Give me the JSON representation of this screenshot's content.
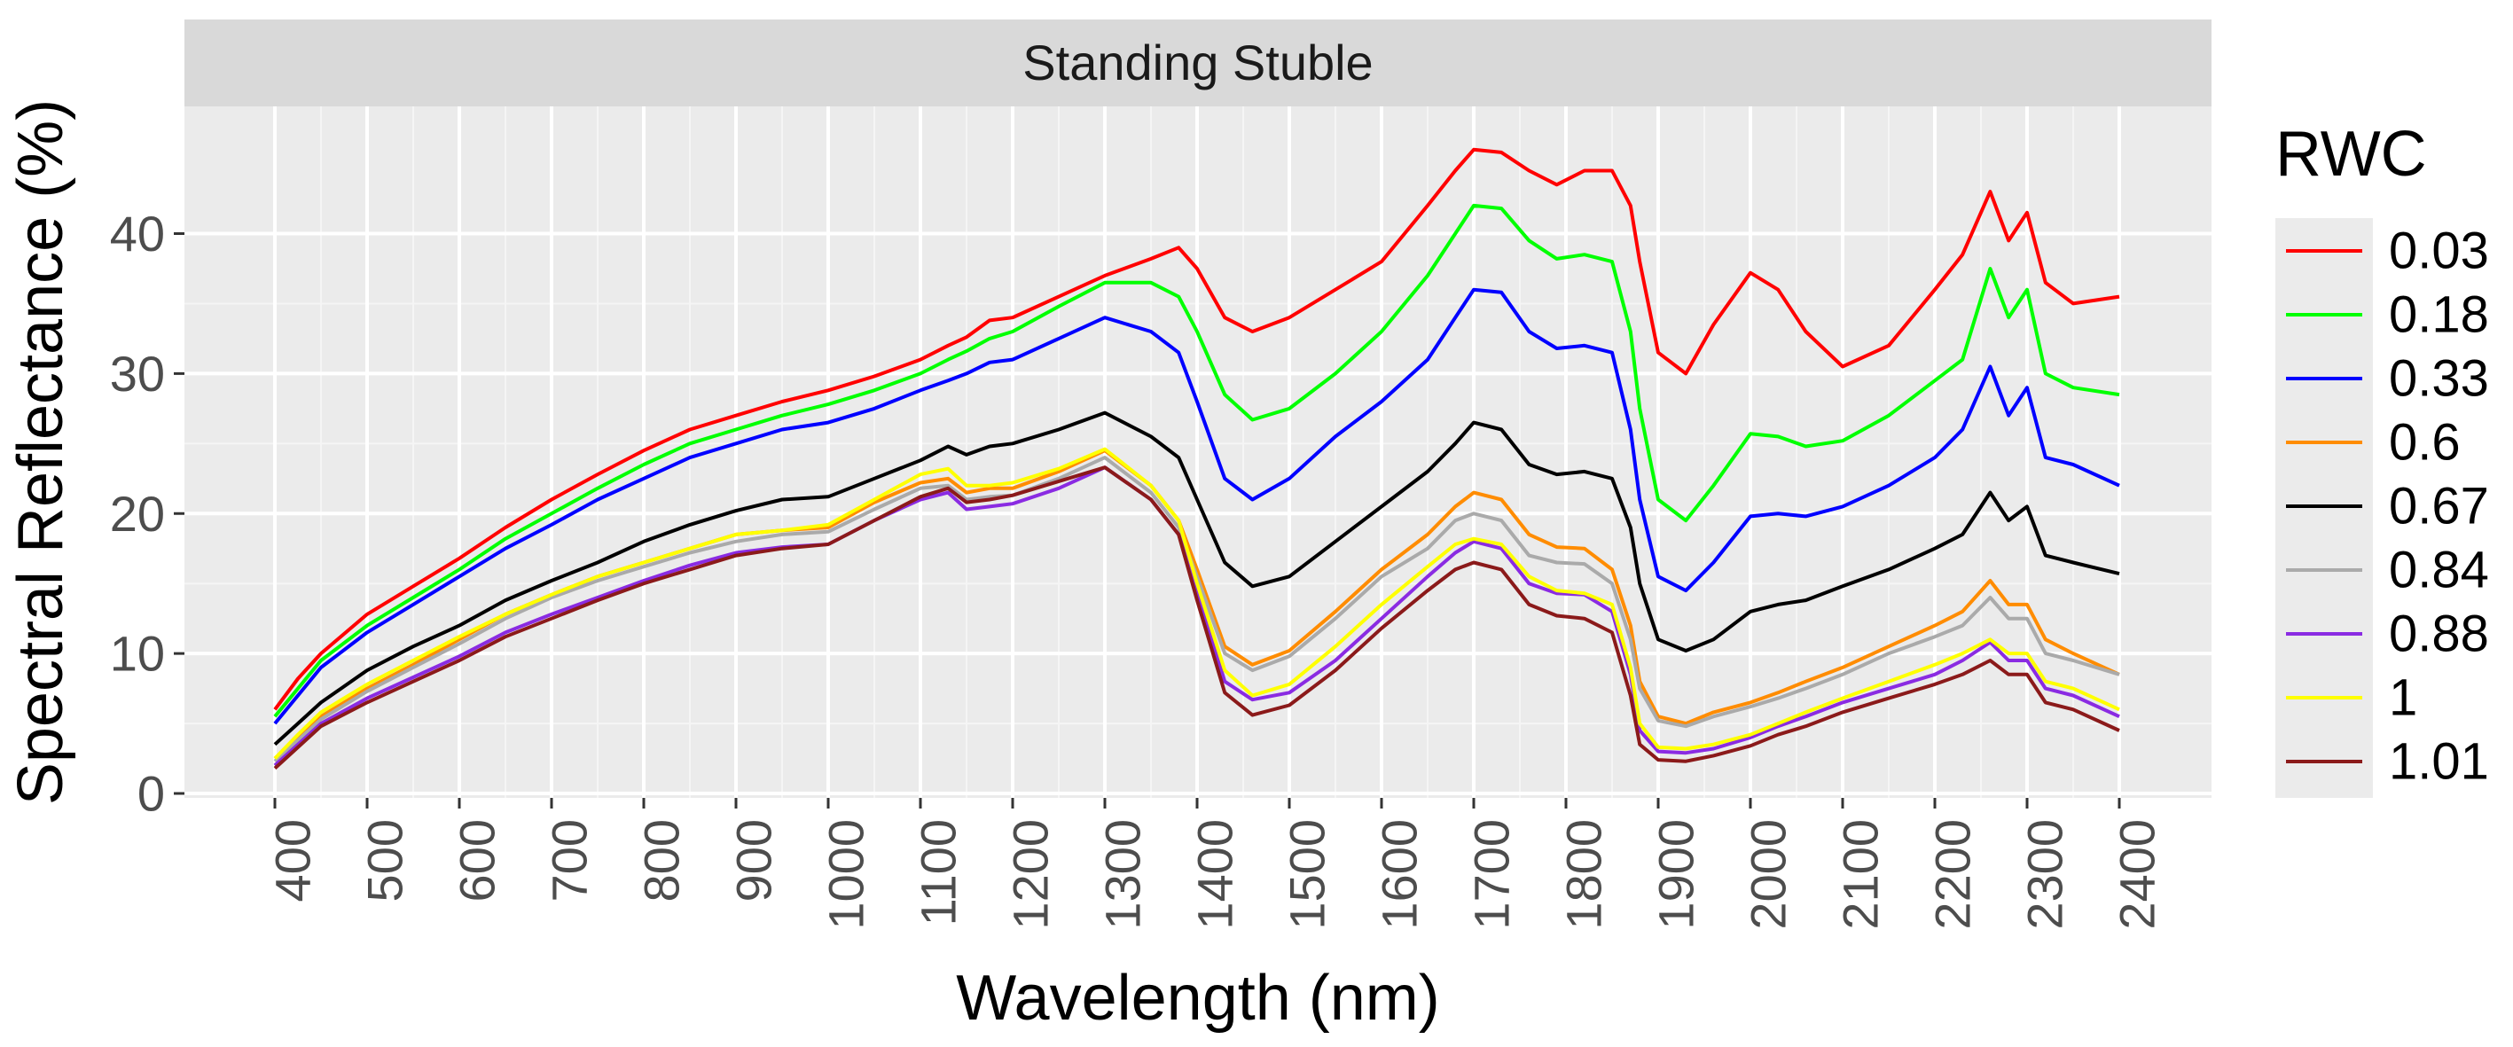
{
  "chart_data": {
    "type": "line",
    "title": "",
    "facet_label": "Standing Stuble",
    "xlabel": "Wavelength (nm)",
    "ylabel": "Spectral Reflectance (%)",
    "xlim": [
      400,
      2400
    ],
    "ylim": [
      0,
      47
    ],
    "x_ticks": [
      "400",
      "500",
      "600",
      "700",
      "800",
      "900",
      "1000",
      "1100",
      "1200",
      "1300",
      "1400",
      "1500",
      "1600",
      "1700",
      "1800",
      "1900",
      "2000",
      "2100",
      "2200",
      "2300",
      "2400"
    ],
    "y_ticks": [
      "0",
      "10",
      "20",
      "30",
      "40"
    ],
    "grid": true,
    "legend": {
      "title": "RWC",
      "position": "right"
    },
    "x": [
      400,
      425,
      450,
      500,
      550,
      600,
      650,
      700,
      750,
      800,
      850,
      900,
      950,
      1000,
      1050,
      1100,
      1130,
      1150,
      1175,
      1200,
      1250,
      1300,
      1350,
      1380,
      1400,
      1430,
      1460,
      1500,
      1550,
      1600,
      1650,
      1680,
      1700,
      1730,
      1760,
      1790,
      1820,
      1850,
      1870,
      1880,
      1900,
      1930,
      1960,
      2000,
      2030,
      2060,
      2100,
      2150,
      2200,
      2230,
      2260,
      2280,
      2300,
      2320,
      2350,
      2400
    ],
    "series": [
      {
        "name": "0.03",
        "color": "#ff0000",
        "values": [
          6.0,
          8.2,
          10.0,
          12.8,
          14.8,
          16.8,
          19.0,
          21.0,
          22.8,
          24.5,
          26.0,
          27.0,
          28.0,
          28.8,
          29.8,
          31.0,
          32.0,
          32.6,
          33.8,
          34.0,
          35.5,
          37.0,
          38.2,
          39.0,
          37.5,
          34.0,
          33.0,
          34.0,
          36.0,
          38.0,
          42.0,
          44.5,
          46.0,
          45.8,
          44.5,
          43.5,
          44.5,
          44.5,
          42.0,
          38.0,
          31.5,
          30.0,
          33.5,
          37.2,
          36.0,
          33.0,
          30.5,
          32.0,
          36.0,
          38.5,
          43.0,
          39.5,
          41.5,
          36.5,
          35.0,
          35.5
        ]
      },
      {
        "name": "0.18",
        "color": "#00ff00",
        "values": [
          5.5,
          7.5,
          9.5,
          12.0,
          14.0,
          16.0,
          18.2,
          20.0,
          21.8,
          23.5,
          25.0,
          26.0,
          27.0,
          27.8,
          28.8,
          30.0,
          31.0,
          31.6,
          32.5,
          33.0,
          34.8,
          36.5,
          36.5,
          35.5,
          33.0,
          28.5,
          26.7,
          27.5,
          30.0,
          33.0,
          37.0,
          40.0,
          42.0,
          41.8,
          39.5,
          38.2,
          38.5,
          38.0,
          33.0,
          27.5,
          21.0,
          19.5,
          22.0,
          25.7,
          25.5,
          24.8,
          25.2,
          27.0,
          29.5,
          31.0,
          37.5,
          34.0,
          36.0,
          30.0,
          29.0,
          28.5
        ]
      },
      {
        "name": "0.33",
        "color": "#0000ff",
        "values": [
          5.0,
          7.0,
          9.0,
          11.5,
          13.5,
          15.5,
          17.5,
          19.2,
          21.0,
          22.5,
          24.0,
          25.0,
          26.0,
          26.5,
          27.5,
          28.8,
          29.5,
          30.0,
          30.8,
          31.0,
          32.5,
          34.0,
          33.0,
          31.5,
          28.0,
          22.5,
          21.0,
          22.5,
          25.5,
          28.0,
          31.0,
          34.0,
          36.0,
          35.8,
          33.0,
          31.8,
          32.0,
          31.5,
          26.0,
          21.0,
          15.5,
          14.5,
          16.5,
          19.8,
          20.0,
          19.8,
          20.5,
          22.0,
          24.0,
          26.0,
          30.5,
          27.0,
          29.0,
          24.0,
          23.5,
          22.0
        ]
      },
      {
        "name": "0.6",
        "color": "#ff8c00",
        "values": [
          2.5,
          4.0,
          5.5,
          7.5,
          9.2,
          11.0,
          12.8,
          14.2,
          15.5,
          16.5,
          17.5,
          18.5,
          18.8,
          19.0,
          20.8,
          22.2,
          22.5,
          21.5,
          21.8,
          21.8,
          23.0,
          24.5,
          22.0,
          19.5,
          16.0,
          10.5,
          9.2,
          10.2,
          13.0,
          16.0,
          18.5,
          20.5,
          21.5,
          21.0,
          18.5,
          17.6,
          17.5,
          16.0,
          12.0,
          8.0,
          5.5,
          5.0,
          5.8,
          6.5,
          7.2,
          8.0,
          9.0,
          10.5,
          12.0,
          13.0,
          15.2,
          13.5,
          13.5,
          11.0,
          10.0,
          8.5
        ]
      },
      {
        "name": "0.67",
        "color": "#000000",
        "values": [
          3.5,
          5.0,
          6.5,
          8.8,
          10.5,
          12.0,
          13.8,
          15.2,
          16.5,
          18.0,
          19.2,
          20.2,
          21.0,
          21.2,
          22.5,
          23.8,
          24.8,
          24.2,
          24.8,
          25.0,
          26.0,
          27.2,
          25.5,
          24.0,
          21.0,
          16.5,
          14.8,
          15.5,
          18.0,
          20.5,
          23.0,
          25.0,
          26.5,
          26.0,
          23.5,
          22.8,
          23.0,
          22.5,
          19.0,
          15.0,
          11.0,
          10.2,
          11.0,
          13.0,
          13.5,
          13.8,
          14.8,
          16.0,
          17.5,
          18.5,
          21.5,
          19.5,
          20.5,
          17.0,
          16.5,
          15.7
        ]
      },
      {
        "name": "0.84",
        "color": "#aaaaaa",
        "values": [
          2.3,
          3.8,
          5.3,
          7.3,
          9.0,
          10.7,
          12.5,
          14.0,
          15.2,
          16.2,
          17.2,
          18.0,
          18.5,
          18.7,
          20.3,
          21.8,
          22.0,
          21.0,
          21.2,
          21.3,
          22.5,
          24.0,
          21.5,
          19.0,
          15.5,
          10.0,
          8.8,
          9.8,
          12.5,
          15.5,
          17.5,
          19.5,
          20.0,
          19.5,
          17.0,
          16.5,
          16.4,
          15.0,
          11.0,
          7.5,
          5.2,
          4.8,
          5.5,
          6.2,
          6.8,
          7.5,
          8.5,
          10.0,
          11.2,
          12.0,
          14.0,
          12.5,
          12.5,
          10.0,
          9.5,
          8.5
        ]
      },
      {
        "name": "0.88",
        "color": "#8a2be2",
        "values": [
          2.0,
          3.5,
          5.0,
          6.8,
          8.3,
          9.8,
          11.5,
          12.8,
          14.0,
          15.2,
          16.3,
          17.2,
          17.6,
          17.8,
          19.5,
          21.0,
          21.5,
          20.3,
          20.5,
          20.7,
          21.8,
          23.3,
          21.0,
          18.5,
          14.5,
          8.0,
          6.7,
          7.2,
          9.5,
          12.5,
          15.5,
          17.2,
          18.0,
          17.5,
          15.0,
          14.3,
          14.2,
          13.0,
          8.5,
          4.5,
          3.0,
          2.9,
          3.2,
          4.0,
          4.8,
          5.5,
          6.5,
          7.5,
          8.5,
          9.5,
          10.8,
          9.5,
          9.5,
          7.5,
          7.0,
          5.5
        ]
      },
      {
        "name": "1",
        "color": "#ffff00",
        "values": [
          2.5,
          4.2,
          5.8,
          7.8,
          9.5,
          11.2,
          12.8,
          14.2,
          15.5,
          16.5,
          17.5,
          18.5,
          18.8,
          19.2,
          21.0,
          22.8,
          23.2,
          22.0,
          22.0,
          22.2,
          23.2,
          24.6,
          22.0,
          19.5,
          15.0,
          8.8,
          7.0,
          7.8,
          10.5,
          13.5,
          16.2,
          17.8,
          18.2,
          17.8,
          15.5,
          14.5,
          14.3,
          13.5,
          9.0,
          5.0,
          3.3,
          3.2,
          3.5,
          4.2,
          5.0,
          5.8,
          6.8,
          8.0,
          9.2,
          10.0,
          11.0,
          10.0,
          10.0,
          8.0,
          7.5,
          6.0
        ]
      },
      {
        "name": "1.01",
        "color": "#8b1a1a",
        "values": [
          1.8,
          3.3,
          4.8,
          6.5,
          8.0,
          9.5,
          11.2,
          12.5,
          13.8,
          15.0,
          16.0,
          17.0,
          17.5,
          17.8,
          19.5,
          21.2,
          21.8,
          20.8,
          21.0,
          21.3,
          22.3,
          23.3,
          21.0,
          18.5,
          13.8,
          7.2,
          5.6,
          6.3,
          8.8,
          11.8,
          14.5,
          16.0,
          16.5,
          16.0,
          13.5,
          12.7,
          12.5,
          11.5,
          7.0,
          3.5,
          2.4,
          2.3,
          2.7,
          3.4,
          4.2,
          4.8,
          5.8,
          6.8,
          7.8,
          8.5,
          9.5,
          8.5,
          8.5,
          6.5,
          6.0,
          4.5
        ]
      }
    ]
  }
}
